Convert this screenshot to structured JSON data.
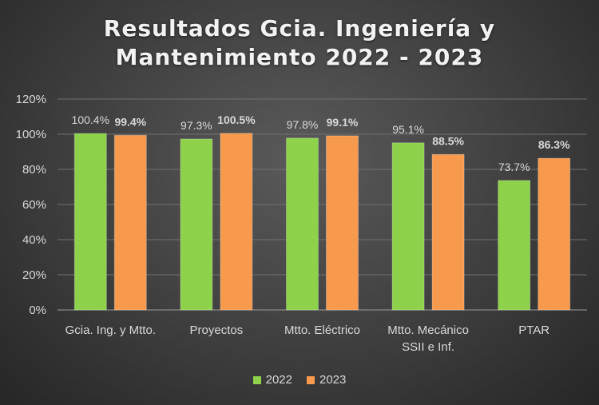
{
  "chart_data": {
    "type": "bar",
    "title_line1": "Resultados Gcia. Ingeniería y",
    "title_line2": "Mantenimiento 2022 - 2023",
    "categories": [
      [
        "Gcia. Ing. y Mtto."
      ],
      [
        "Proyectos"
      ],
      [
        "Mtto. Eléctrico"
      ],
      [
        "Mtto. Mecánico",
        "SSII e Inf."
      ],
      [
        "PTAR"
      ]
    ],
    "series": [
      {
        "name": "2022",
        "values": [
          100.4,
          97.3,
          97.8,
          95.1,
          73.7
        ],
        "labels": [
          "100.4%",
          "97.3%",
          "97.8%",
          "95.1%",
          "73.7%"
        ],
        "color": "#8ed14a",
        "label_bold": false
      },
      {
        "name": "2023",
        "values": [
          99.4,
          100.5,
          99.1,
          88.5,
          86.3
        ],
        "labels": [
          "99.4%",
          "100.5%",
          "99.1%",
          "88.5%",
          "86.3%"
        ],
        "color": "#f79a4e",
        "label_bold": true
      }
    ],
    "y_ticks": [
      0,
      20,
      40,
      60,
      80,
      100,
      120
    ],
    "y_tick_labels": [
      "0%",
      "20%",
      "40%",
      "60%",
      "80%",
      "100%",
      "120%"
    ],
    "ylim": [
      0,
      120
    ],
    "grid": true,
    "legend_position": "bottom"
  }
}
